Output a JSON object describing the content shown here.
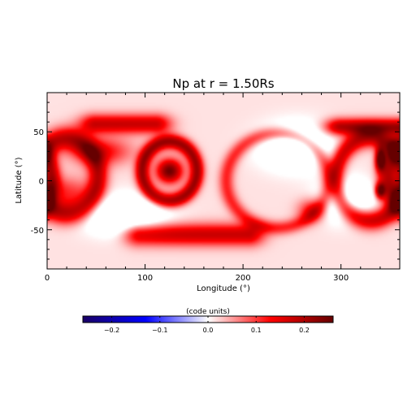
{
  "chart_data": {
    "type": "heatmap",
    "title": "Np at r = 1.50Rs",
    "xlabel": "Longitude (°)",
    "ylabel": "Latitude (°)",
    "xlim": [
      0,
      360
    ],
    "ylim": [
      -90,
      90
    ],
    "x_ticks": [
      0,
      100,
      200,
      300
    ],
    "y_ticks": [
      -50,
      0,
      50
    ],
    "x_minor_step": 20,
    "y_minor_step": 10,
    "colorbar": {
      "label": "(code units)",
      "range": [
        -0.26,
        0.26
      ],
      "ticks": [
        -0.2,
        -0.1,
        0.0,
        0.1,
        0.2
      ],
      "tick_labels": [
        "−0.2",
        "−0.1",
        "0.0",
        "0.1",
        "0.2"
      ],
      "colormap": [
        "#1a0066",
        "#0000ff",
        "#ffffff",
        "#ff0000",
        "#660000"
      ]
    },
    "field_model": {
      "background": 0.015,
      "features": [
        {
          "kind": "band",
          "x0": 50,
          "x1": 110,
          "lat": 58,
          "half_width": 7,
          "value": 0.16
        },
        {
          "kind": "band",
          "x0": 95,
          "x1": 205,
          "lat": -55,
          "half_width": 8,
          "value": 0.16
        },
        {
          "kind": "band",
          "x0": 300,
          "x1": 360,
          "lat": 55,
          "half_width": 6,
          "value": 0.19
        },
        {
          "kind": "ring",
          "lon": 125,
          "lat": 10,
          "r_lon": 28,
          "r_lat": 30,
          "half_width": 5,
          "value": 0.2
        },
        {
          "kind": "ring",
          "lon": 20,
          "lat": 5,
          "r_lon": 32,
          "r_lat": 38,
          "half_width": 7,
          "value": 0.17
        },
        {
          "kind": "ring",
          "lon": 235,
          "lat": 0,
          "r_lon": 52,
          "r_lat": 48,
          "half_width": 5,
          "value": 0.1
        },
        {
          "kind": "ring",
          "lon": 330,
          "lat": 2,
          "r_lon": 35,
          "r_lat": 42,
          "half_width": 6,
          "value": 0.17
        },
        {
          "kind": "blob",
          "lon": 125,
          "lat": 10,
          "r_lon": 13,
          "r_lat": 12,
          "value": 0.24
        },
        {
          "kind": "blob",
          "lon": 340,
          "lat": 22,
          "r_lon": 5,
          "r_lat": 12,
          "value": 0.25
        },
        {
          "kind": "blob",
          "lon": 340,
          "lat": -10,
          "r_lon": 5,
          "r_lat": 8,
          "value": 0.22
        },
        {
          "kind": "blob",
          "lon": 55,
          "lat": 30,
          "r_lon": 30,
          "r_lat": 14,
          "value": 0.12
        },
        {
          "kind": "blob",
          "lon": 270,
          "lat": -30,
          "r_lon": 14,
          "r_lat": 12,
          "value": 0.11
        },
        {
          "kind": "blob",
          "lon": 20,
          "lat": -12,
          "r_lon": 25,
          "r_lat": 16,
          "value": 0.09
        },
        {
          "kind": "hole",
          "lon": 80,
          "lat": -35,
          "r_lon": 38,
          "r_lat": 18,
          "value": -0.12
        },
        {
          "kind": "hole",
          "lon": 255,
          "lat": 35,
          "r_lon": 35,
          "r_lat": 22,
          "value": -0.1
        },
        {
          "kind": "hole",
          "lon": 305,
          "lat": -20,
          "r_lon": 28,
          "r_lat": 20,
          "value": -0.1
        }
      ]
    }
  }
}
